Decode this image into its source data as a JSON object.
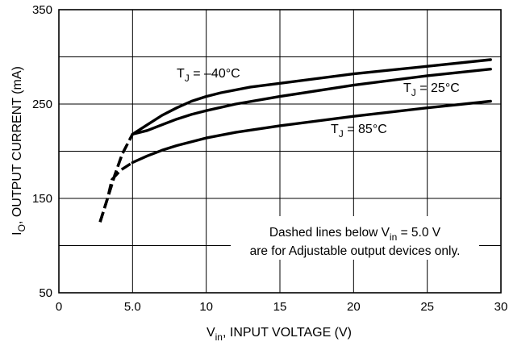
{
  "chart_data": {
    "type": "line",
    "xlabel": {
      "main": "V",
      "sub": "in",
      "rest": ", INPUT VOLTAGE (V)"
    },
    "ylabel": {
      "main": "I",
      "sub": "O",
      "rest": ", OUTPUT CURRENT (mA)"
    },
    "xlim": [
      0,
      30
    ],
    "ylim": [
      50,
      350
    ],
    "x_ticks": [
      {
        "value": 0,
        "label": "0"
      },
      {
        "value": 5,
        "label": "5.0"
      },
      {
        "value": 10,
        "label": "10"
      },
      {
        "value": 15,
        "label": "15"
      },
      {
        "value": 20,
        "label": "20"
      },
      {
        "value": 25,
        "label": "25"
      },
      {
        "value": 30,
        "label": "30"
      }
    ],
    "y_ticks": [
      {
        "value": 50,
        "label": "50"
      },
      {
        "value": 150,
        "label": "150"
      },
      {
        "value": 250,
        "label": "250"
      },
      {
        "value": 350,
        "label": "350"
      }
    ],
    "grid": true,
    "dashed_below_x": 5.0,
    "series": [
      {
        "name": "T_J = -40°C",
        "label": {
          "main": "T",
          "sub": "J",
          "rest": " = –40°C"
        },
        "x": [
          2.8,
          3.3,
          3.8,
          4.3,
          5.0,
          6.0,
          7.0,
          8.0,
          9.0,
          10.0,
          11.0,
          13.0,
          15.0,
          20.0,
          25.0,
          29.3
        ],
        "y": [
          125,
          150,
          175,
          197,
          218,
          228,
          238,
          246,
          253,
          258,
          262,
          268,
          272,
          282,
          290,
          297
        ]
      },
      {
        "name": "T_J = 25°C",
        "label": {
          "main": "T",
          "sub": "J",
          "rest": " = 25°C"
        },
        "x": [
          2.8,
          3.3,
          3.8,
          4.3,
          5.0,
          6.0,
          7.0,
          8.0,
          9.0,
          10.0,
          12.0,
          15.0,
          20.0,
          25.0,
          29.3
        ],
        "y": [
          125,
          150,
          175,
          197,
          218,
          222,
          228,
          234,
          239,
          243,
          250,
          258,
          270,
          280,
          287
        ]
      },
      {
        "name": "T_J = 85°C",
        "label": {
          "main": "T",
          "sub": "J",
          "rest": " = 85°C"
        },
        "x": [
          2.8,
          3.3,
          3.6,
          4.2,
          5.0,
          6.0,
          7.0,
          8.0,
          10.0,
          12.0,
          15.0,
          20.0,
          25.0,
          29.3
        ],
        "y": [
          125,
          150,
          170,
          180,
          188,
          195,
          201,
          206,
          214,
          220,
          227,
          237,
          246,
          253
        ]
      }
    ],
    "annotation": {
      "line1": {
        "pre": "Dashed lines below V",
        "sub": "in",
        "post": " = 5.0 V"
      },
      "line2": "are for Adjustable output devices only."
    }
  }
}
